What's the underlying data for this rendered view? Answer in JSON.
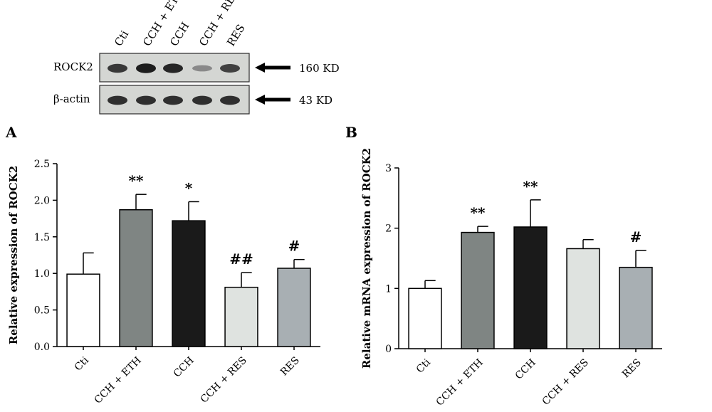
{
  "blot": {
    "lane_labels": [
      "Cti",
      "CCH + ETH",
      "CCH",
      "CCH + RES",
      "RES"
    ],
    "bands": [
      {
        "name": "ROCK2",
        "size_label": "160 KD",
        "intensities": [
          0.8,
          0.95,
          0.9,
          0.35,
          0.75
        ]
      },
      {
        "name": "β-actin",
        "size_label": "43 KD",
        "intensities": [
          0.85,
          0.85,
          0.85,
          0.85,
          0.85
        ]
      }
    ]
  },
  "chart_data": [
    {
      "panel": "A",
      "type": "bar",
      "categories": [
        "Cti",
        "CCH + ETH",
        "CCH",
        "CCH + RES",
        "RES"
      ],
      "values": [
        0.99,
        1.87,
        1.72,
        0.81,
        1.07
      ],
      "errors": [
        0.29,
        0.21,
        0.26,
        0.2,
        0.12
      ],
      "annotations": [
        "",
        "**",
        "*",
        "##",
        "#"
      ],
      "colors": [
        "#ffffff",
        "#7f8583",
        "#1a1a1a",
        "#dfe3e0",
        "#a8afb3"
      ],
      "ylabel": "Relative expression of ROCK2",
      "ylim": [
        0,
        2.5
      ],
      "yticks": [
        "0.0",
        "0.5",
        "1.0",
        "1.5",
        "2.0",
        "2.5"
      ],
      "ytick_values": [
        0,
        0.5,
        1.0,
        1.5,
        2.0,
        2.5
      ]
    },
    {
      "panel": "B",
      "type": "bar",
      "categories": [
        "Cti",
        "CCH + ETH",
        "CCH",
        "CCH + RES",
        "RES"
      ],
      "values": [
        1.0,
        1.93,
        2.02,
        1.66,
        1.35
      ],
      "errors": [
        0.13,
        0.1,
        0.45,
        0.15,
        0.28
      ],
      "annotations": [
        "",
        "**",
        "**",
        "",
        "#"
      ],
      "colors": [
        "#ffffff",
        "#7f8583",
        "#1a1a1a",
        "#dfe3e0",
        "#a8afb3"
      ],
      "ylabel": "Relative mRNA expression of ROCK2",
      "ylim": [
        0,
        3
      ],
      "yticks": [
        "0",
        "1",
        "2",
        "3"
      ],
      "ytick_values": [
        0,
        1,
        2,
        3
      ]
    }
  ]
}
